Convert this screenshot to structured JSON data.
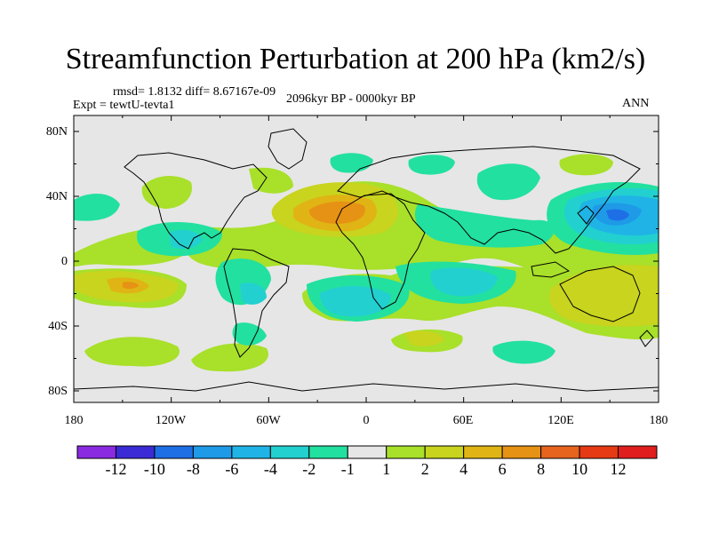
{
  "title": "Streamfunction Perturbation at 200 hPa (km2/s)",
  "rmsd_text": "rmsd= 1.8132 diff= 8.67167e-09",
  "experiment": "Expt = tewtU-tevta1",
  "period": "2096kyr BP - 0000kyr BP",
  "season": "ANN",
  "lat_labels": [
    "80N",
    "40N",
    "0",
    "40S",
    "80S"
  ],
  "lon_labels": [
    "180",
    "120W",
    "60W",
    "0",
    "60E",
    "120E",
    "180"
  ],
  "colorbar": {
    "colors": [
      "#8a2be2",
      "#3a2bd6",
      "#1e6ee6",
      "#1e9ae6",
      "#20b4e6",
      "#22d0d0",
      "#22e0a0",
      "#e6e6e6",
      "#a8e02a",
      "#c8d41e",
      "#e0b414",
      "#e69214",
      "#e6641e",
      "#e63a14",
      "#e01e1e"
    ],
    "labels": [
      "-12",
      "-10",
      "-8",
      "-6",
      "-4",
      "-2",
      "-1",
      "1",
      "2",
      "4",
      "6",
      "8",
      "10",
      "12"
    ]
  }
}
